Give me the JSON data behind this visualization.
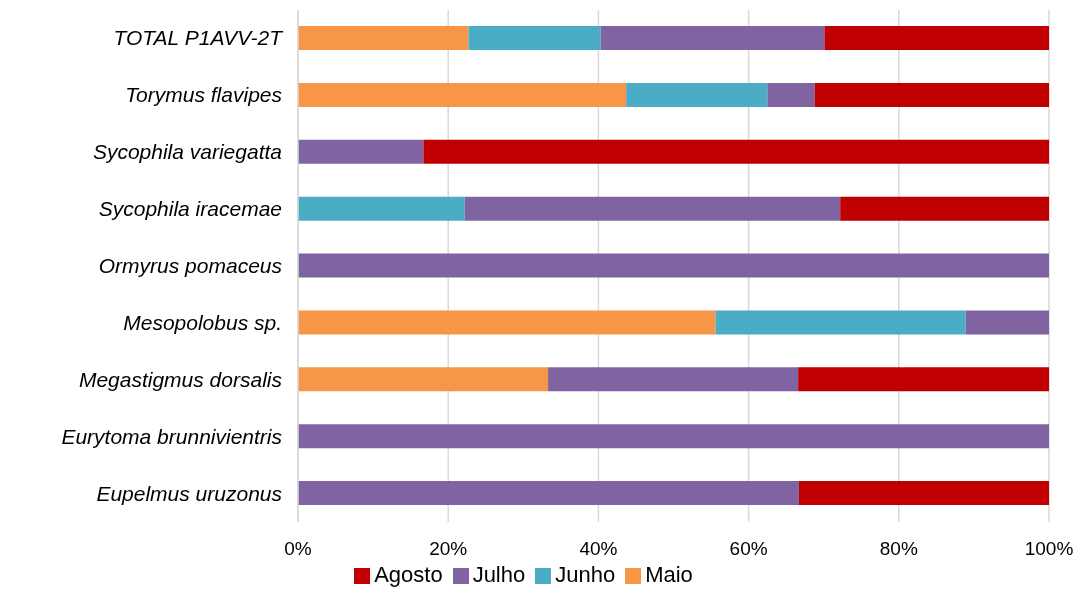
{
  "chart_data": {
    "type": "bar",
    "orientation": "horizontal",
    "stacked": true,
    "categories": [
      "TOTAL P1AVV-2T",
      "Torymus flavipes",
      "Sycophila variegatta",
      "Sycophila iracemae",
      "Ormyrus pomaceus",
      "Mesopolobus sp.",
      "Megastigmus dorsalis",
      "Eurytoma brunnivientris",
      "Eupelmus uruzonus"
    ],
    "series": [
      {
        "name": "Maio",
        "color": "#f79646",
        "values": [
          22.7,
          43.7,
          null,
          null,
          null,
          55.6,
          33.3,
          null,
          null
        ]
      },
      {
        "name": "Junho",
        "color": "#4bacc6",
        "values": [
          17.6,
          18.8,
          null,
          22.2,
          null,
          33.3,
          null,
          null,
          null
        ]
      },
      {
        "name": "Julho",
        "color": "#8064a2",
        "values": [
          29.8,
          6.3,
          16.7,
          50,
          100,
          11.1,
          33.3,
          100,
          66.7
        ]
      },
      {
        "name": "Agosto",
        "color": "#c00000",
        "values": [
          29.9,
          31.2,
          83.3,
          27.8,
          null,
          null,
          33.4,
          null,
          33.3
        ]
      }
    ],
    "xlim": [
      0,
      100
    ],
    "xticks": [
      {
        "value": 0,
        "label": "0%"
      },
      {
        "value": 20,
        "label": "20%"
      },
      {
        "value": 40,
        "label": "40%"
      },
      {
        "value": 60,
        "label": "60%"
      },
      {
        "value": 80,
        "label": "80%"
      },
      {
        "value": 100,
        "label": "100%"
      }
    ],
    "grid": "x",
    "legend": "bottom"
  }
}
